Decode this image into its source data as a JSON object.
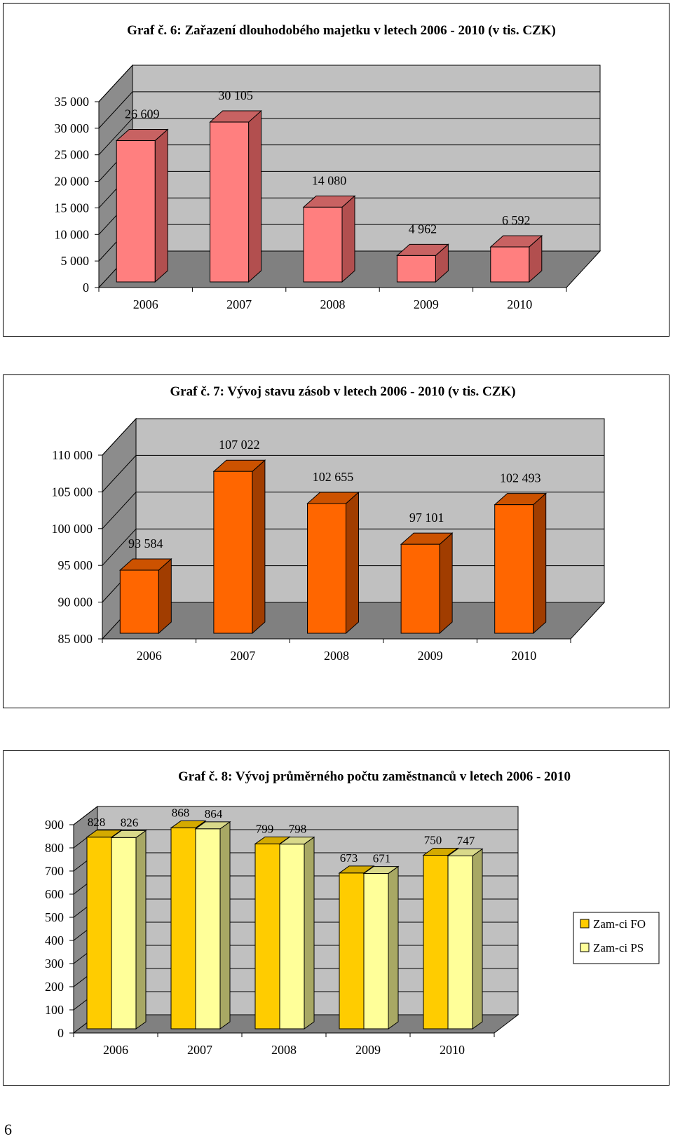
{
  "page_number": "6",
  "chart_data": [
    {
      "type": "bar",
      "title": "Graf č. 6: Zařazení dlouhodobého  majetku  v letech 2006 - 2010 (v  tis. CZK)",
      "categories": [
        "2006",
        "2007",
        "2008",
        "2009",
        "2010"
      ],
      "series": [
        {
          "values": [
            26609,
            30105,
            14080,
            4962,
            6592
          ],
          "labels": [
            "26 609",
            "30 105",
            "14 080",
            "4 962",
            "6 592"
          ]
        }
      ],
      "colors": {
        "front": "#ff7f7f",
        "side": "#b24f4f",
        "top": "#c86262"
      },
      "ylim": [
        0,
        35000
      ],
      "yticks": [
        0,
        5000,
        10000,
        15000,
        20000,
        25000,
        30000,
        35000
      ],
      "ytick_labels": [
        "0",
        "5 000",
        "10 000",
        "15 000",
        "20 000",
        "25 000",
        "30 000",
        "35 000"
      ],
      "grid": true
    },
    {
      "type": "bar",
      "title": "Graf  č. 7: Vývoj  stavu  zásob  v letech 2006 - 2010 (v  tis. CZK)",
      "categories": [
        "2006",
        "2007",
        "2008",
        "2009",
        "2010"
      ],
      "series": [
        {
          "values": [
            93584,
            107022,
            102655,
            97101,
            102493
          ],
          "labels": [
            "93 584",
            "107 022",
            "102 655",
            "97 101",
            "102 493"
          ]
        }
      ],
      "colors": {
        "front": "#ff6600",
        "side": "#a13d00",
        "top": "#cc5200"
      },
      "ylim": [
        85000,
        110000
      ],
      "yticks": [
        85000,
        90000,
        95000,
        100000,
        105000,
        110000
      ],
      "ytick_labels": [
        "85 000",
        "90 000",
        "95 000",
        "100 000",
        "105 000",
        "110 000"
      ],
      "grid": true
    },
    {
      "type": "bar",
      "title": "Graf  č. 8: Vývoj  průměrného  počtu  zaměstnanců  v letech 2006 - 2010",
      "categories": [
        "2006",
        "2007",
        "2008",
        "2009",
        "2010"
      ],
      "series": [
        {
          "name": "Zam-ci FO",
          "values": [
            828,
            868,
            799,
            673,
            750
          ],
          "labels": [
            "828",
            "868",
            "799",
            "673",
            "750"
          ],
          "color": "#ffcc00",
          "side": "#a88600",
          "top": "#d4aa00"
        },
        {
          "name": "Zam-ci PS",
          "values": [
            826,
            864,
            798,
            671,
            747
          ],
          "labels": [
            "826",
            "864",
            "798",
            "671",
            "747"
          ],
          "color": "#ffff99",
          "side": "#a8a864",
          "top": "#d9d98a"
        }
      ],
      "ylim": [
        0,
        900
      ],
      "yticks": [
        0,
        100,
        200,
        300,
        400,
        500,
        600,
        700,
        800,
        900
      ],
      "ytick_labels": [
        "0",
        "100",
        "200",
        "300",
        "400",
        "500",
        "600",
        "700",
        "800",
        "900"
      ],
      "grid": true,
      "legend": "right"
    }
  ]
}
